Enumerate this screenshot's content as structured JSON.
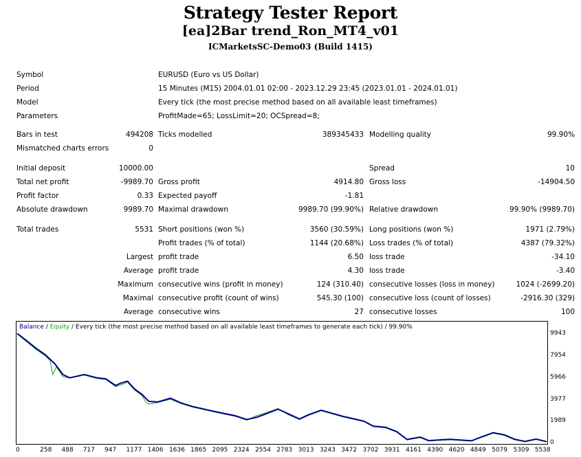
{
  "report": {
    "title": "Strategy Tester Report",
    "ea_name": "[ea]2Bar trend_Ron_MT4_v01",
    "server": "ICMarketsSC-Demo03 (Build 1415)"
  },
  "settings": {
    "symbol_label": "Symbol",
    "symbol": "EURUSD (Euro vs US Dollar)",
    "period_label": "Period",
    "period": "15 Minutes (M15) 2004.01.01 02:00 - 2023.12.29 23:45 (2023.01.01 - 2024.01.01)",
    "model_label": "Model",
    "model": "Every tick (the most precise method based on all available least timeframes)",
    "parameters_label": "Parameters",
    "parameters": "ProfitMade=65; LossLimit=20; OCSpread=8;"
  },
  "stats": {
    "bars_label": "Bars in test",
    "bars": "494208",
    "ticks_label": "Ticks modelled",
    "ticks": "389345433",
    "quality_label": "Modelling quality",
    "quality": "99.90%",
    "mismatch_label": "Mismatched charts errors",
    "mismatch": "0",
    "deposit_label": "Initial deposit",
    "deposit": "10000.00",
    "spread_label": "Spread",
    "spread": "10",
    "net_profit_label": "Total net profit",
    "net_profit": "-9989.70",
    "gross_profit_label": "Gross profit",
    "gross_profit": "4914.80",
    "gross_loss_label": "Gross loss",
    "gross_loss": "-14904.50",
    "profit_factor_label": "Profit factor",
    "profit_factor": "0.33",
    "expected_payoff_label": "Expected payoff",
    "expected_payoff": "-1.81",
    "abs_dd_label": "Absolute drawdown",
    "abs_dd": "9989.70",
    "max_dd_label": "Maximal drawdown",
    "max_dd": "9989.70 (99.90%)",
    "rel_dd_label": "Relative drawdown",
    "rel_dd": "99.90% (9989.70)",
    "total_trades_label": "Total trades",
    "total_trades": "5531",
    "short_label": "Short positions (won %)",
    "short": "3560 (30.59%)",
    "long_label": "Long positions (won %)",
    "long": "1971 (2.79%)",
    "profit_trades_label": "Profit trades (% of total)",
    "profit_trades": "1144 (20.68%)",
    "loss_trades_label": "Loss trades (% of total)",
    "loss_trades": "4387 (79.32%)",
    "largest_label": "Largest",
    "largest_profit_label": "profit trade",
    "largest_profit": "6.50",
    "largest_loss_label": "loss trade",
    "largest_loss": "-34.10",
    "average_label": "Average",
    "avg_profit_label": "profit trade",
    "avg_profit": "4.30",
    "avg_loss_label": "loss trade",
    "avg_loss": "-3.40",
    "maximum_label": "Maximum",
    "max_cons_wins_label": "consecutive wins (profit in money)",
    "max_cons_wins": "124 (310.40)",
    "max_cons_losses_label": "consecutive losses (loss in money)",
    "max_cons_losses": "1024 (-2699.20)",
    "maximal_label": "Maximal",
    "maximal_cons_profit_label": "consecutive profit (count of wins)",
    "maximal_cons_profit": "545.30 (100)",
    "maximal_cons_loss_label": "consecutive loss (count of losses)",
    "maximal_cons_loss": "-2916.30 (329)",
    "average2_label": "Average",
    "avg_cons_wins_label": "consecutive wins",
    "avg_cons_wins": "27",
    "avg_cons_losses_label": "consecutive losses",
    "avg_cons_losses": "100"
  },
  "chart_data": {
    "type": "line",
    "legend_balance": "Balance",
    "legend_sep": " / ",
    "legend_equity": "Equity",
    "legend_rest": " / Every tick (the most precise method based on all available least timeframes to generate each tick) / 99.90%",
    "balance_color": "#00008b",
    "equity_color": "#1a9c1a",
    "ylim": [
      0,
      10400
    ],
    "xlim": [
      0,
      5650
    ],
    "yticks": [
      "0",
      "1989",
      "3977",
      "5966",
      "7954",
      "9943"
    ],
    "ytick_values": [
      0,
      1989,
      3977,
      5966,
      7954,
      9943
    ],
    "xticks": [
      "0",
      "258",
      "488",
      "717",
      "947",
      "1177",
      "1406",
      "1636",
      "1865",
      "2095",
      "2324",
      "2554",
      "2783",
      "3013",
      "3243",
      "3472",
      "3702",
      "3931",
      "4161",
      "4390",
      "4620",
      "4849",
      "5079",
      "5309",
      "5538"
    ],
    "xtick_values": [
      0,
      258,
      488,
      717,
      947,
      1177,
      1406,
      1636,
      1865,
      2095,
      2324,
      2554,
      2783,
      3013,
      3243,
      3472,
      3702,
      3931,
      4161,
      4390,
      4620,
      4849,
      5079,
      5309,
      5538
    ],
    "series": [
      {
        "name": "Balance",
        "x": [
          0,
          100,
          200,
          300,
          400,
          488,
          560,
          717,
          850,
          947,
          1050,
          1100,
          1177,
          1250,
          1330,
          1406,
          1500,
          1636,
          1750,
          1865,
          2095,
          2324,
          2450,
          2554,
          2650,
          2783,
          2900,
          3013,
          3100,
          3243,
          3472,
          3702,
          3800,
          3931,
          4050,
          4161,
          4300,
          4390,
          4620,
          4849,
          4950,
          5079,
          5200,
          5309,
          5420,
          5538,
          5650
        ],
        "y": [
          9943,
          9300,
          8600,
          8000,
          7200,
          6200,
          5900,
          6200,
          5900,
          5800,
          5200,
          5400,
          5600,
          4900,
          4400,
          3750,
          3700,
          4050,
          3600,
          3300,
          2850,
          2450,
          2100,
          2300,
          2600,
          3050,
          2600,
          2150,
          2500,
          2950,
          2400,
          1950,
          1500,
          1400,
          1000,
          280,
          500,
          180,
          300,
          160,
          500,
          900,
          700,
          300,
          100,
          320,
          80
        ]
      },
      {
        "name": "Equity",
        "x": [
          0,
          100,
          200,
          300,
          350,
          380,
          420,
          488,
          560,
          717,
          850,
          947,
          1050,
          1120,
          1177,
          1250,
          1330,
          1380,
          1406,
          1500,
          1636,
          1750,
          1865,
          2095,
          2324,
          2450,
          2554,
          2650,
          2783,
          2900,
          3013,
          3100,
          3243,
          3472,
          3702,
          3800,
          3931,
          4050,
          4161,
          4300,
          4390,
          4620,
          4849,
          4950,
          5079,
          5200,
          5309,
          5420,
          5538,
          5650
        ],
        "y": [
          9900,
          9200,
          8500,
          7900,
          7500,
          6200,
          6900,
          6000,
          5900,
          6150,
          5850,
          5750,
          5100,
          5300,
          5500,
          4800,
          4300,
          3600,
          3500,
          3650,
          3950,
          3550,
          3250,
          2800,
          2400,
          2050,
          2450,
          2700,
          3100,
          2500,
          2100,
          2450,
          2900,
          2350,
          1900,
          1450,
          1350,
          950,
          250,
          450,
          150,
          250,
          130,
          450,
          850,
          650,
          250,
          80,
          280,
          50
        ]
      }
    ]
  }
}
